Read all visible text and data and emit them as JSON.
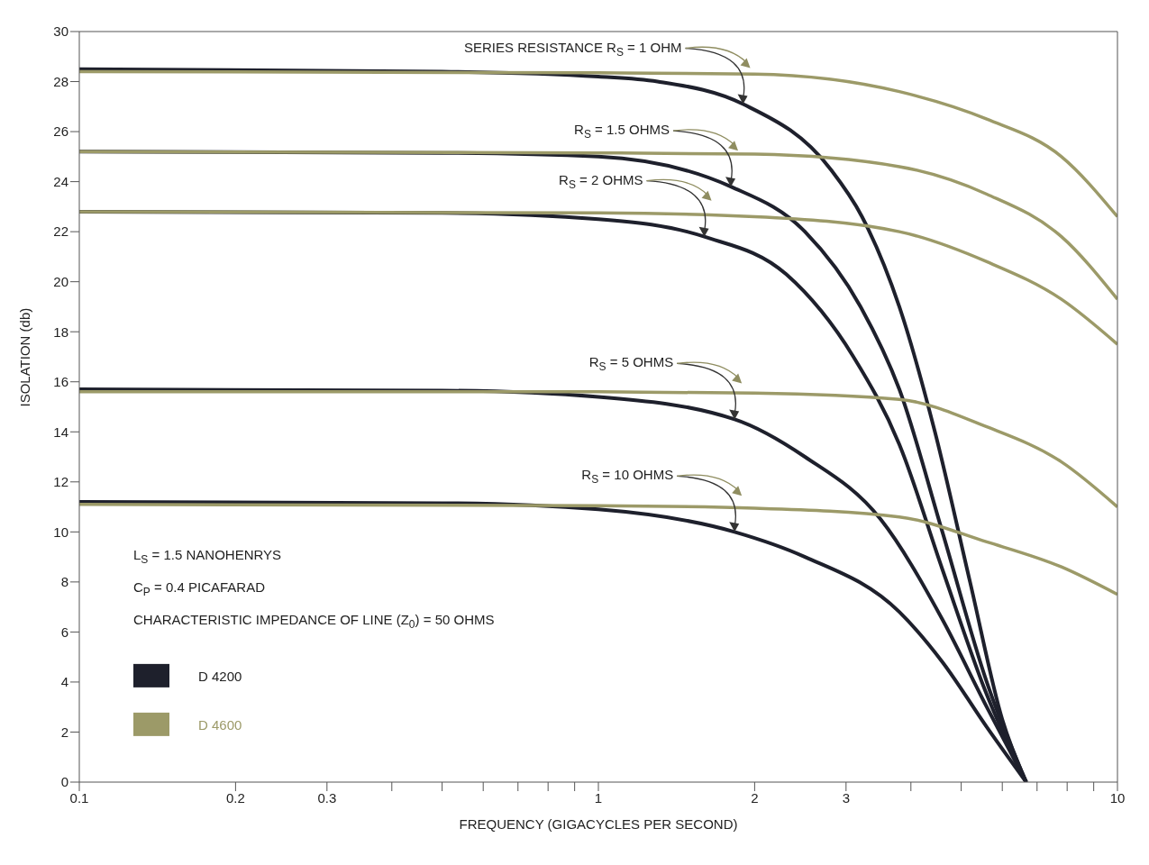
{
  "chart_data": {
    "type": "line",
    "xlabel": "FREQUENCY (GIGACYCLES PER SECOND)",
    "ylabel": "ISOLATION (db)",
    "log": "x",
    "xlim": [
      0.1,
      10
    ],
    "ylim": [
      0,
      30
    ],
    "xticks": [
      0.1,
      0.2,
      0.3,
      {
        "value": 0.4,
        "label": null
      },
      {
        "value": 0.5,
        "label": null
      },
      {
        "value": 0.6,
        "label": null
      },
      {
        "value": 0.7,
        "label": null
      },
      {
        "value": 0.8,
        "label": null
      },
      {
        "value": 0.9,
        "label": null
      },
      1,
      2,
      3,
      {
        "value": 4,
        "label": null
      },
      {
        "value": 5,
        "label": null
      },
      {
        "value": 6,
        "label": null
      },
      {
        "value": 7,
        "label": null
      },
      {
        "value": 8,
        "label": null
      },
      {
        "value": 9,
        "label": null
      },
      10
    ],
    "yticks": [
      0,
      2,
      4,
      6,
      8,
      10,
      12,
      14,
      16,
      18,
      20,
      22,
      24,
      26,
      28,
      30
    ],
    "grid": false,
    "legend": "bottom left",
    "marker": "none",
    "line_style": "solid",
    "series": [
      {
        "name": "D 4200",
        "color": "#1e202c",
        "x": [
          0.1,
          0.5,
          1,
          1.3,
          1.9,
          2.8,
          3.22,
          3.8,
          4.45,
          5.2,
          6,
          6.67
        ],
        "values": [
          28.5,
          28.4,
          28.2,
          28,
          27.1,
          24.5,
          22.6,
          19,
          14,
          8,
          2.5,
          0
        ]
      },
      {
        "color": "#1e202c",
        "x": [
          0.1,
          0.5,
          1,
          1.8,
          2.5,
          3.2,
          3.8,
          4.6,
          5.6,
          6.67
        ],
        "values": [
          25.2,
          25.15,
          25,
          23.8,
          22,
          19,
          15.7,
          10,
          4,
          0
        ]
      },
      {
        "color": "#1e202c",
        "x": [
          0.1,
          0.5,
          1,
          1.6,
          2.3,
          3.1,
          3.8,
          4.6,
          5.6,
          6.67
        ],
        "values": [
          22.8,
          22.75,
          22.5,
          21.8,
          20.3,
          17,
          13.5,
          8.5,
          3.5,
          0
        ]
      },
      {
        "color": "#1e202c",
        "x": [
          0.1,
          0.5,
          1,
          1.83,
          2.5,
          3.5,
          4.6,
          5.6,
          6.67
        ],
        "values": [
          15.7,
          15.65,
          15.4,
          14.5,
          13,
          10.5,
          6.5,
          3,
          0
        ]
      },
      {
        "color": "#1e202c",
        "x": [
          0.1,
          0.5,
          1,
          1.83,
          2.5,
          3.8,
          4.6,
          5.6,
          6.67
        ],
        "values": [
          11.2,
          11.15,
          10.9,
          10,
          9,
          6.8,
          4.8,
          2.2,
          0
        ]
      },
      {
        "name": "D 4600",
        "color": "#9c9a68",
        "x": [
          0.1,
          1,
          2,
          3.8,
          5.6,
          7.8,
          10
        ],
        "values": [
          28.4,
          28.35,
          28.3,
          27.6,
          26.5,
          25,
          22.6
        ]
      },
      {
        "color": "#9c9a68",
        "x": [
          0.1,
          1,
          2,
          3.8,
          5.6,
          7.8,
          10
        ],
        "values": [
          25.2,
          25.15,
          25.1,
          24.6,
          23.5,
          21.8,
          19.3
        ]
      },
      {
        "color": "#9c9a68",
        "x": [
          0.1,
          1,
          2,
          3.8,
          5.6,
          7.8,
          10
        ],
        "values": [
          22.8,
          22.75,
          22.6,
          22,
          20.8,
          19.3,
          17.5
        ]
      },
      {
        "color": "#9c9a68",
        "x": [
          0.1,
          1,
          2,
          3.8,
          5.6,
          7.8,
          10
        ],
        "values": [
          15.6,
          15.6,
          15.55,
          15.3,
          14.2,
          12.8,
          11
        ]
      },
      {
        "color": "#9c9a68",
        "x": [
          0.1,
          1,
          2,
          3.8,
          5.6,
          7.8,
          10
        ],
        "values": [
          11.1,
          11.05,
          10.95,
          10.6,
          9.6,
          8.6,
          7.5
        ]
      }
    ],
    "annotations": [
      {
        "text": "SERIES RESISTANCE R$_{S}$ = 1 OHM",
        "x": 1.9,
        "y": 27.1
      },
      {
        "text": "R$_{S}$ = 1.5 OHMS",
        "x": 1.8,
        "y": 23.8
      },
      {
        "text": "R$_{S}$ = 2 OHMS",
        "x": 1.6,
        "y": 21.8
      },
      {
        "text": "R$_{S}$ = 5 OHMS",
        "x": 1.83,
        "y": 14.5
      },
      {
        "text": "R$_{S}$ = 10 OHMS",
        "x": 1.83,
        "y": 10
      },
      "L$_{S}$ = 1.5 NANOHENRYS",
      "C$_{P}$ = 0.4 PICAFARAD",
      "CHARACTERISTIC IMPEDANCE OF LINE (Z$_{0}$) = 50 OHMS"
    ]
  }
}
